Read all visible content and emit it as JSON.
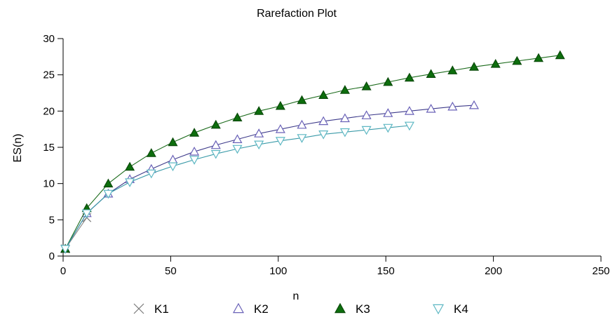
{
  "chart_data": {
    "type": "line",
    "title": "Rarefaction Plot",
    "xlabel": "n",
    "ylabel": "ES(n)",
    "xlim": [
      0,
      250
    ],
    "ylim": [
      0,
      30
    ],
    "xticks": [
      0,
      50,
      100,
      150,
      200,
      250
    ],
    "yticks": [
      0,
      5,
      10,
      15,
      20,
      25,
      30
    ],
    "grid": false,
    "legend_position": "bottom",
    "series": [
      {
        "name": "K1",
        "marker": "x",
        "color": "#7a7a7a",
        "line_color": "#888888",
        "x": [
          1,
          11
        ],
        "y": [
          1,
          5.3
        ]
      },
      {
        "name": "K2",
        "marker": "triangle-up-open",
        "color": "#6a62b8",
        "line_color": "#3d3a8a",
        "x": [
          1,
          11,
          21,
          31,
          41,
          51,
          61,
          71,
          81,
          91,
          101,
          111,
          121,
          131,
          141,
          151,
          161,
          171,
          181,
          191
        ],
        "y": [
          1,
          5.9,
          8.6,
          10.6,
          12.0,
          13.3,
          14.4,
          15.3,
          16.1,
          16.9,
          17.5,
          18.1,
          18.6,
          19.0,
          19.4,
          19.7,
          20.0,
          20.3,
          20.6,
          20.8
        ]
      },
      {
        "name": "K3",
        "marker": "triangle-up-filled",
        "color": "#0d6e0d",
        "line_color": "#1a6a1a",
        "x": [
          1,
          11,
          21,
          31,
          41,
          51,
          61,
          71,
          81,
          91,
          101,
          111,
          121,
          131,
          141,
          151,
          161,
          171,
          181,
          191,
          201,
          211,
          221,
          231
        ],
        "y": [
          1,
          6.6,
          10.0,
          12.3,
          14.2,
          15.7,
          17.0,
          18.1,
          19.1,
          20.0,
          20.7,
          21.5,
          22.2,
          22.9,
          23.4,
          24.0,
          24.6,
          25.1,
          25.6,
          26.1,
          26.5,
          26.9,
          27.3,
          27.7
        ]
      },
      {
        "name": "K4",
        "marker": "triangle-down-open",
        "color": "#5fb8c4",
        "line_color": "#3a9aa8",
        "x": [
          1,
          11,
          21,
          31,
          41,
          51,
          61,
          71,
          81,
          91,
          101,
          111,
          121,
          131,
          141,
          151,
          161
        ],
        "y": [
          1,
          5.9,
          8.6,
          10.2,
          11.4,
          12.4,
          13.3,
          14.1,
          14.8,
          15.4,
          15.9,
          16.3,
          16.8,
          17.1,
          17.4,
          17.7,
          18.0
        ]
      }
    ]
  }
}
